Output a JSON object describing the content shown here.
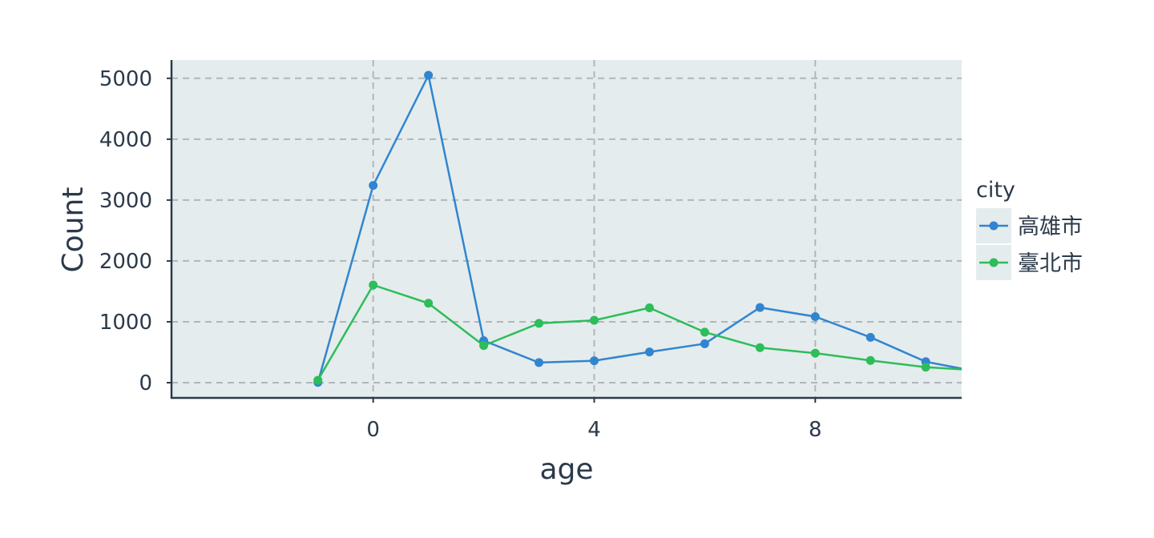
{
  "chart_data": {
    "type": "line",
    "xlabel": "age",
    "ylabel": "Count",
    "xlim": [
      -3.65,
      10.65
    ],
    "ylim": [
      -250,
      5300
    ],
    "xticks": [
      0,
      4,
      8
    ],
    "yticks": [
      0,
      1000,
      2000,
      3000,
      4000,
      5000
    ],
    "grid": true,
    "legend": {
      "title": "city",
      "position": "right"
    },
    "series": [
      {
        "name": "高雄市",
        "color": "#3185d0",
        "x": [
          -1,
          0,
          1,
          2,
          3,
          4,
          5,
          6,
          7,
          8,
          9,
          10,
          11
        ],
        "y": [
          5,
          3240,
          5050,
          690,
          330,
          360,
          505,
          640,
          1235,
          1085,
          745,
          345,
          170
        ]
      },
      {
        "name": "臺北市",
        "color": "#2dbd5a",
        "x": [
          -1,
          0,
          1,
          2,
          3,
          4,
          5,
          6,
          7,
          8,
          9,
          10,
          11
        ],
        "y": [
          40,
          1605,
          1305,
          610,
          975,
          1025,
          1230,
          830,
          575,
          485,
          365,
          255,
          200
        ]
      }
    ]
  }
}
